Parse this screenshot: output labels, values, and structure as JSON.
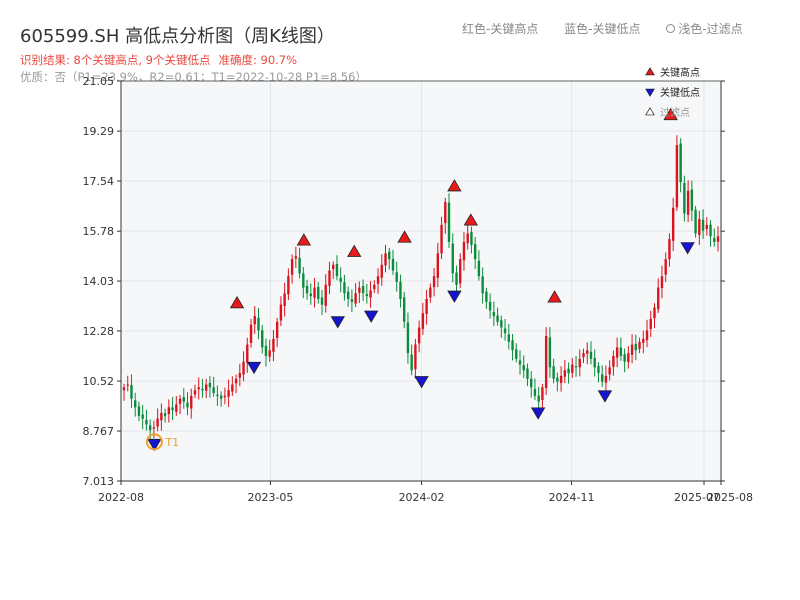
{
  "title": "605599.SH 高低点分析图（周K线图）",
  "top_legend": {
    "red": "红色-关键高点",
    "blue": "蓝色-关键低点",
    "light": "浅色-过滤点"
  },
  "result": {
    "label": "识别结果: 8个关键高点, 9个关键低点",
    "accuracy": "准确度: 90.7%"
  },
  "quality": "优质：否（P1=23.9%，R2=0.61；T1=2022-10-28 P1=8.56）",
  "colors": {
    "up": "#d9141e",
    "down": "#0a8c3c",
    "high_marker": "#e81a1a",
    "low_marker": "#1414d2",
    "t1_ring": "#f0a030",
    "grid": "#e3e6ea",
    "plot_bg": "#f6f7f9"
  },
  "chart_data": {
    "type": "candlestick",
    "title": "605599.SH 高低点分析图（周K线图）",
    "ylim": [
      7.013,
      21.05
    ],
    "y_ticks": [
      "7.013",
      "8.767",
      "10.52",
      "12.28",
      "14.03",
      "15.78",
      "17.54",
      "19.29",
      "21.05"
    ],
    "x_ticks": [
      "2022-08",
      "2023-05",
      "2024-02",
      "2024-11",
      "2025-07",
      "2025-08"
    ],
    "x_range": [
      "2022-08",
      "2025-08"
    ],
    "legend": {
      "position": "top-right",
      "entries": [
        "关键高点",
        "关键低点",
        "过滤点"
      ]
    },
    "t1_label": "T1",
    "key_highs": [
      {
        "date": "2023-03",
        "price": 12.9
      },
      {
        "date": "2023-07",
        "price": 15.1
      },
      {
        "date": "2023-10",
        "price": 14.7
      },
      {
        "date": "2024-01",
        "price": 15.2
      },
      {
        "date": "2024-04",
        "price": 17.0
      },
      {
        "date": "2024-05",
        "price": 15.8
      },
      {
        "date": "2024-10",
        "price": 13.1
      },
      {
        "date": "2025-05",
        "price": 19.5
      }
    ],
    "key_lows": [
      {
        "date": "2022-10",
        "price": 8.6
      },
      {
        "date": "2023-04",
        "price": 11.3
      },
      {
        "date": "2023-09",
        "price": 12.9
      },
      {
        "date": "2023-11",
        "price": 13.1
      },
      {
        "date": "2024-02",
        "price": 10.8
      },
      {
        "date": "2024-04",
        "price": 13.8
      },
      {
        "date": "2024-09",
        "price": 9.7
      },
      {
        "date": "2025-01",
        "price": 10.3
      },
      {
        "date": "2025-06",
        "price": 15.5
      }
    ],
    "weekly_close": [
      10.3,
      10.4,
      9.9,
      9.6,
      9.3,
      9.2,
      9.0,
      8.8,
      8.9,
      9.2,
      9.4,
      9.3,
      9.6,
      9.5,
      9.7,
      9.9,
      9.8,
      9.6,
      10.0,
      10.2,
      10.3,
      10.2,
      10.4,
      10.3,
      10.1,
      10.0,
      9.9,
      10.0,
      10.2,
      10.4,
      10.6,
      10.8,
      11.2,
      11.8,
      12.5,
      12.8,
      12.3,
      11.7,
      11.4,
      11.6,
      12.0,
      12.6,
      13.2,
      13.6,
      14.2,
      14.8,
      14.9,
      14.3,
      13.8,
      13.6,
      13.5,
      13.8,
      13.4,
      13.2,
      13.9,
      14.4,
      14.6,
      14.2,
      14.0,
      13.6,
      13.4,
      13.3,
      13.6,
      13.8,
      13.6,
      13.5,
      13.7,
      13.9,
      14.2,
      14.6,
      15.0,
      14.8,
      14.4,
      14.0,
      13.4,
      12.6,
      11.5,
      10.9,
      11.8,
      12.4,
      12.9,
      13.4,
      13.8,
      14.2,
      15.0,
      16.0,
      16.8,
      15.4,
      14.3,
      13.9,
      14.8,
      15.4,
      15.7,
      15.3,
      14.8,
      14.2,
      13.6,
      13.3,
      13.0,
      12.8,
      12.6,
      12.4,
      12.2,
      11.9,
      11.6,
      11.3,
      11.1,
      10.9,
      10.6,
      10.3,
      10.0,
      9.8,
      10.3,
      12.1,
      11.0,
      10.6,
      10.5,
      10.7,
      10.9,
      10.8,
      11.1,
      11.0,
      11.3,
      11.5,
      11.6,
      11.3,
      11.0,
      10.8,
      10.5,
      10.7,
      11.0,
      11.4,
      11.7,
      11.4,
      11.2,
      11.5,
      11.8,
      11.6,
      11.9,
      12.0,
      12.3,
      12.7,
      13.1,
      13.8,
      14.2,
      14.8,
      15.5,
      16.6,
      18.8,
      17.5,
      16.4,
      17.2,
      16.5,
      15.7,
      16.2,
      15.8,
      16.0,
      15.6,
      15.4,
      15.6
    ]
  }
}
